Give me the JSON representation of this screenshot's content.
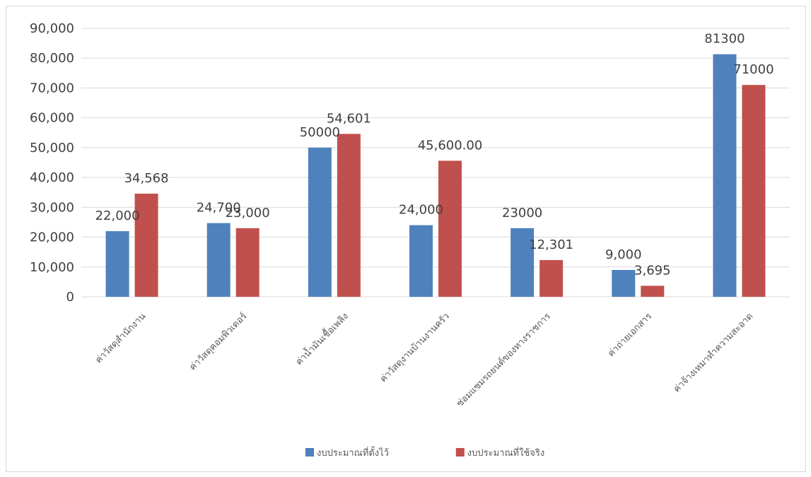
{
  "chart_data": {
    "type": "bar",
    "categories": [
      "ค่าวัสดุสำนักงาน",
      "ค่าวัสดุคอมพิวเตอร์",
      "ค่าน้ำมันเชื้อเพลิง",
      "ค่าวัสดุงานบ้านงานครัว",
      "ซ่อมแซมรถยนต์ของทางราชการ",
      "ค่าถ่ายเอกสาร",
      "ค่าจ้างเหมาทำความสะอาด"
    ],
    "series": [
      {
        "name": "งบประมาณที่ตั้งไว้",
        "color": "#4f81bd",
        "values": [
          22000,
          24700,
          50000,
          24000,
          23000,
          9000,
          81300
        ],
        "labels": [
          "22,000",
          "24,700",
          "50000",
          "24,000",
          "23000",
          "9,000",
          "81300"
        ]
      },
      {
        "name": "งบประมาณที่ใช้จริง",
        "color": "#c0504d",
        "values": [
          34568,
          23000,
          54601,
          45600,
          12301,
          3695,
          71000
        ],
        "labels": [
          "34,568",
          "23,000",
          "54,601",
          "45,600.00",
          "12,301",
          "3,695",
          "71000"
        ]
      }
    ],
    "y_ticks": [
      "0",
      "10,000",
      "20,000",
      "30,000",
      "40,000",
      "50,000",
      "60,000",
      "70,000",
      "80,000",
      "90,000"
    ],
    "ylim": [
      0,
      90000
    ],
    "grid": true,
    "legend_position": "bottom",
    "title": "",
    "xlabel": "",
    "ylabel": ""
  }
}
